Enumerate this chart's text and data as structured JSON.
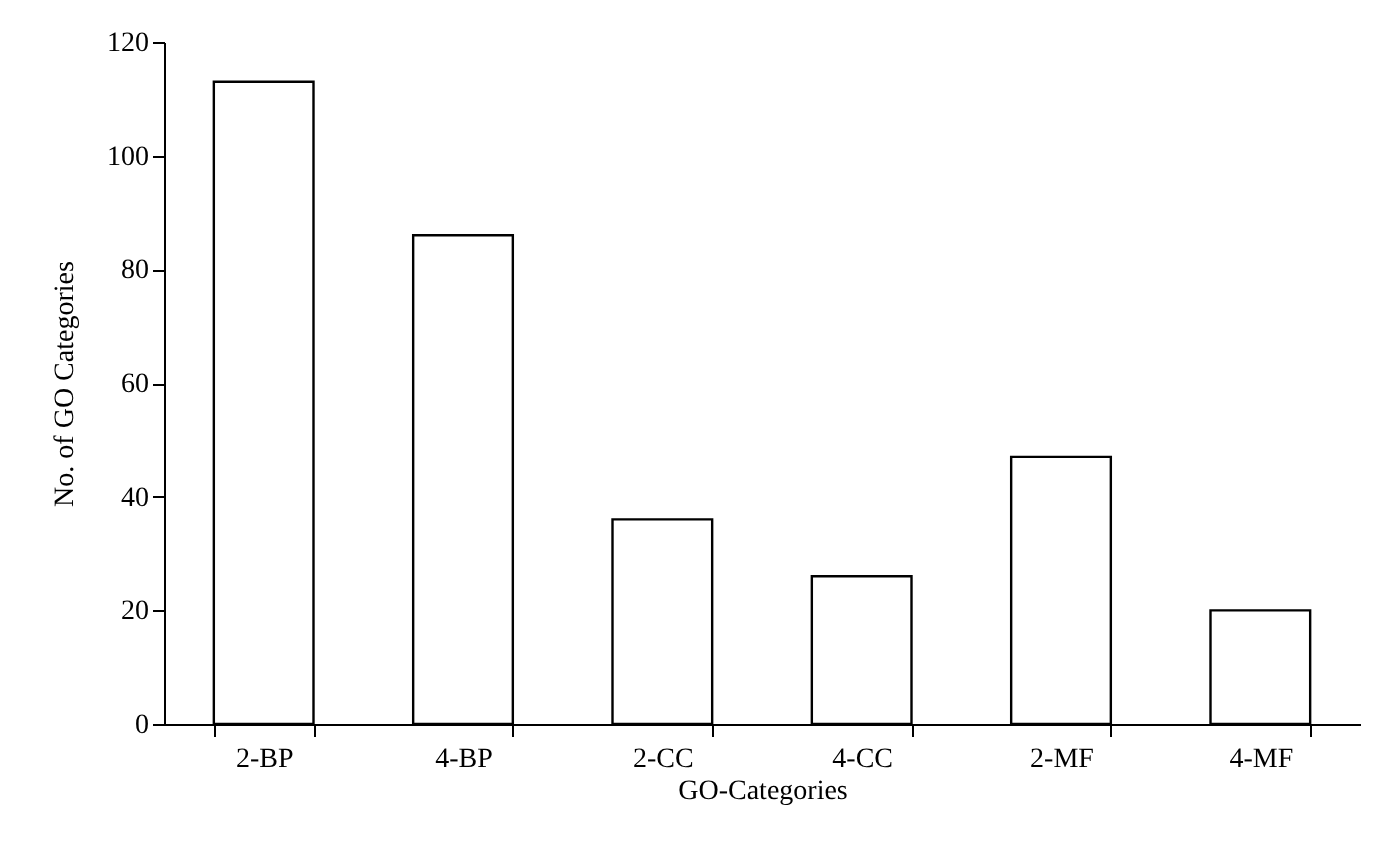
{
  "chart_data": {
    "type": "bar",
    "xlabel": "GO-Categories",
    "ylabel": "No. of GO Categories",
    "categories": [
      "2-BP",
      "4-BP",
      "2-CC",
      "4-CC",
      "2-MF",
      "4-MF"
    ],
    "values": [
      113,
      86,
      36,
      26,
      47,
      20
    ],
    "color": "#ffffff",
    "ylim": [
      0,
      120
    ],
    "yticks": [
      0,
      20,
      40,
      60,
      80,
      100,
      120
    ],
    "grid": false
  }
}
